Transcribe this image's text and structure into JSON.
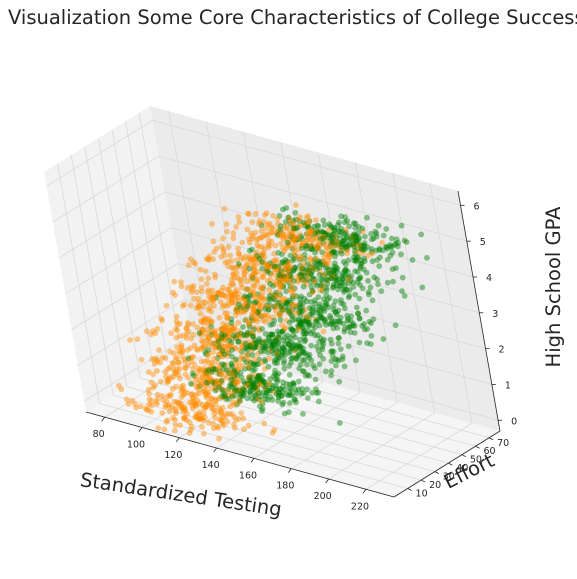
{
  "chart_data": {
    "type": "scatter3d",
    "title": "Visualization Some Core Characteristics of College Success",
    "xlabel": "Standardized Testing",
    "ylabel": "Effort",
    "zlabel": "High School GPA",
    "xlim": [
      70,
      235
    ],
    "ylim": [
      0,
      78
    ],
    "zlim": [
      -0.3,
      6.4
    ],
    "xticks": [
      "80",
      "100",
      "120",
      "140",
      "160",
      "180",
      "200",
      "220"
    ],
    "yticks": [
      "10",
      "20",
      "30",
      "40",
      "50",
      "60",
      "70"
    ],
    "zticks": [
      "0",
      "1",
      "2",
      "3",
      "4",
      "5",
      "6"
    ],
    "grid": true,
    "legend": "none",
    "colors": {
      "series_a": "#ff8c00",
      "series_b": "#008000"
    },
    "series": [
      {
        "gpa_levels": [
          0,
          1,
          2,
          3,
          4,
          5
        ],
        "testing_mean": [
          115,
          122,
          130,
          142,
          155,
          170
        ],
        "effort_mean": [
          18,
          22,
          27,
          32,
          37,
          42
        ],
        "color": "#ff8c00"
      },
      {
        "gpa_levels": [
          1,
          2,
          3,
          4,
          5
        ],
        "testing_mean": [
          150,
          160,
          172,
          180,
          188
        ],
        "effort_mean": [
          25,
          32,
          38,
          45,
          52
        ],
        "color": "#008000"
      }
    ]
  }
}
